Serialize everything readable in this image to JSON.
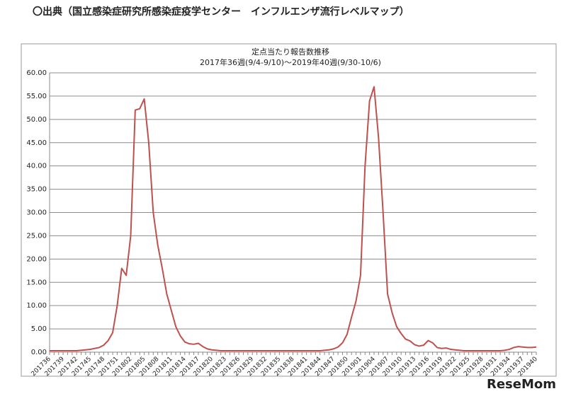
{
  "header": {
    "source_note": "〇出典（国立感染症研究所感染症疫学センター　インフルエンザ流行レベルマップ）"
  },
  "watermark": "ReseMom",
  "chart_data": {
    "type": "line",
    "title": "定点当たり報告数推移",
    "subtitle": "2017年36週(9/4-9/10)〜2019年40週(9/30-10/6)",
    "categories": [
      "201736",
      null,
      null,
      "201739",
      null,
      null,
      "201742",
      null,
      null,
      "201745",
      null,
      null,
      "201748",
      null,
      null,
      "201751",
      null,
      null,
      "201802",
      null,
      null,
      "201805",
      null,
      null,
      "201808",
      null,
      null,
      "201811",
      null,
      null,
      "201814",
      null,
      null,
      "201817",
      null,
      null,
      "201820",
      null,
      null,
      "201823",
      null,
      null,
      "201826",
      null,
      null,
      "201829",
      null,
      null,
      "201832",
      null,
      null,
      "201835",
      null,
      null,
      "201838",
      null,
      null,
      "201841",
      null,
      null,
      "201844",
      null,
      null,
      "201847",
      null,
      null,
      "201850",
      null,
      null,
      "201901",
      null,
      null,
      "201904",
      null,
      null,
      "201907",
      null,
      null,
      "201910",
      null,
      null,
      "201913",
      null,
      null,
      "201916",
      null,
      null,
      "201919",
      null,
      null,
      "201922",
      null,
      null,
      "201925",
      null,
      null,
      "201928",
      null,
      null,
      "201931",
      null,
      null,
      "201934",
      null,
      null,
      "201937",
      null,
      null,
      "201940"
    ],
    "series": [
      {
        "color": "#c0504d",
        "values": [
          0.3,
          0.3,
          0.3,
          0.3,
          0.3,
          0.3,
          0.3,
          0.4,
          0.5,
          0.6,
          0.8,
          1.0,
          1.5,
          2.5,
          4.2,
          10.0,
          18.0,
          16.5,
          25.0,
          52.0,
          52.3,
          54.4,
          45.0,
          30.0,
          23.0,
          18.0,
          12.5,
          9.0,
          5.5,
          3.5,
          2.2,
          1.8,
          1.7,
          1.9,
          1.2,
          0.7,
          0.5,
          0.4,
          0.3,
          0.3,
          0.3,
          0.3,
          0.3,
          0.3,
          0.3,
          0.3,
          0.3,
          0.3,
          0.3,
          0.3,
          0.3,
          0.3,
          0.3,
          0.3,
          0.3,
          0.3,
          0.3,
          0.3,
          0.3,
          0.3,
          0.3,
          0.4,
          0.5,
          0.7,
          1.1,
          2.0,
          3.8,
          7.5,
          11.0,
          16.5,
          40.0,
          54.0,
          57.0,
          46.0,
          30.0,
          12.5,
          8.5,
          5.5,
          4.0,
          2.8,
          2.4,
          1.6,
          1.3,
          1.5,
          2.5,
          2.0,
          1.0,
          0.8,
          0.9,
          0.6,
          0.5,
          0.4,
          0.3,
          0.3,
          0.3,
          0.3,
          0.3,
          0.3,
          0.3,
          0.3,
          0.3,
          0.4,
          0.6,
          1.0,
          1.2,
          1.1,
          1.0,
          1.0,
          1.1
        ]
      }
    ],
    "ylim": [
      0,
      60
    ],
    "yticks": [
      {
        "value": 0,
        "label": "0.00"
      },
      {
        "value": 5,
        "label": "5.00"
      },
      {
        "value": 10,
        "label": "10.00"
      },
      {
        "value": 15,
        "label": "15.00"
      },
      {
        "value": 20,
        "label": "20.00"
      },
      {
        "value": 25,
        "label": "25.00"
      },
      {
        "value": 30,
        "label": "30.00"
      },
      {
        "value": 35,
        "label": "35.00"
      },
      {
        "value": 40,
        "label": "40.00"
      },
      {
        "value": 45,
        "label": "45.00"
      },
      {
        "value": 50,
        "label": "50.00"
      },
      {
        "value": 55,
        "label": "55.00"
      },
      {
        "value": 60,
        "label": "60.00"
      }
    ],
    "grid": true
  }
}
